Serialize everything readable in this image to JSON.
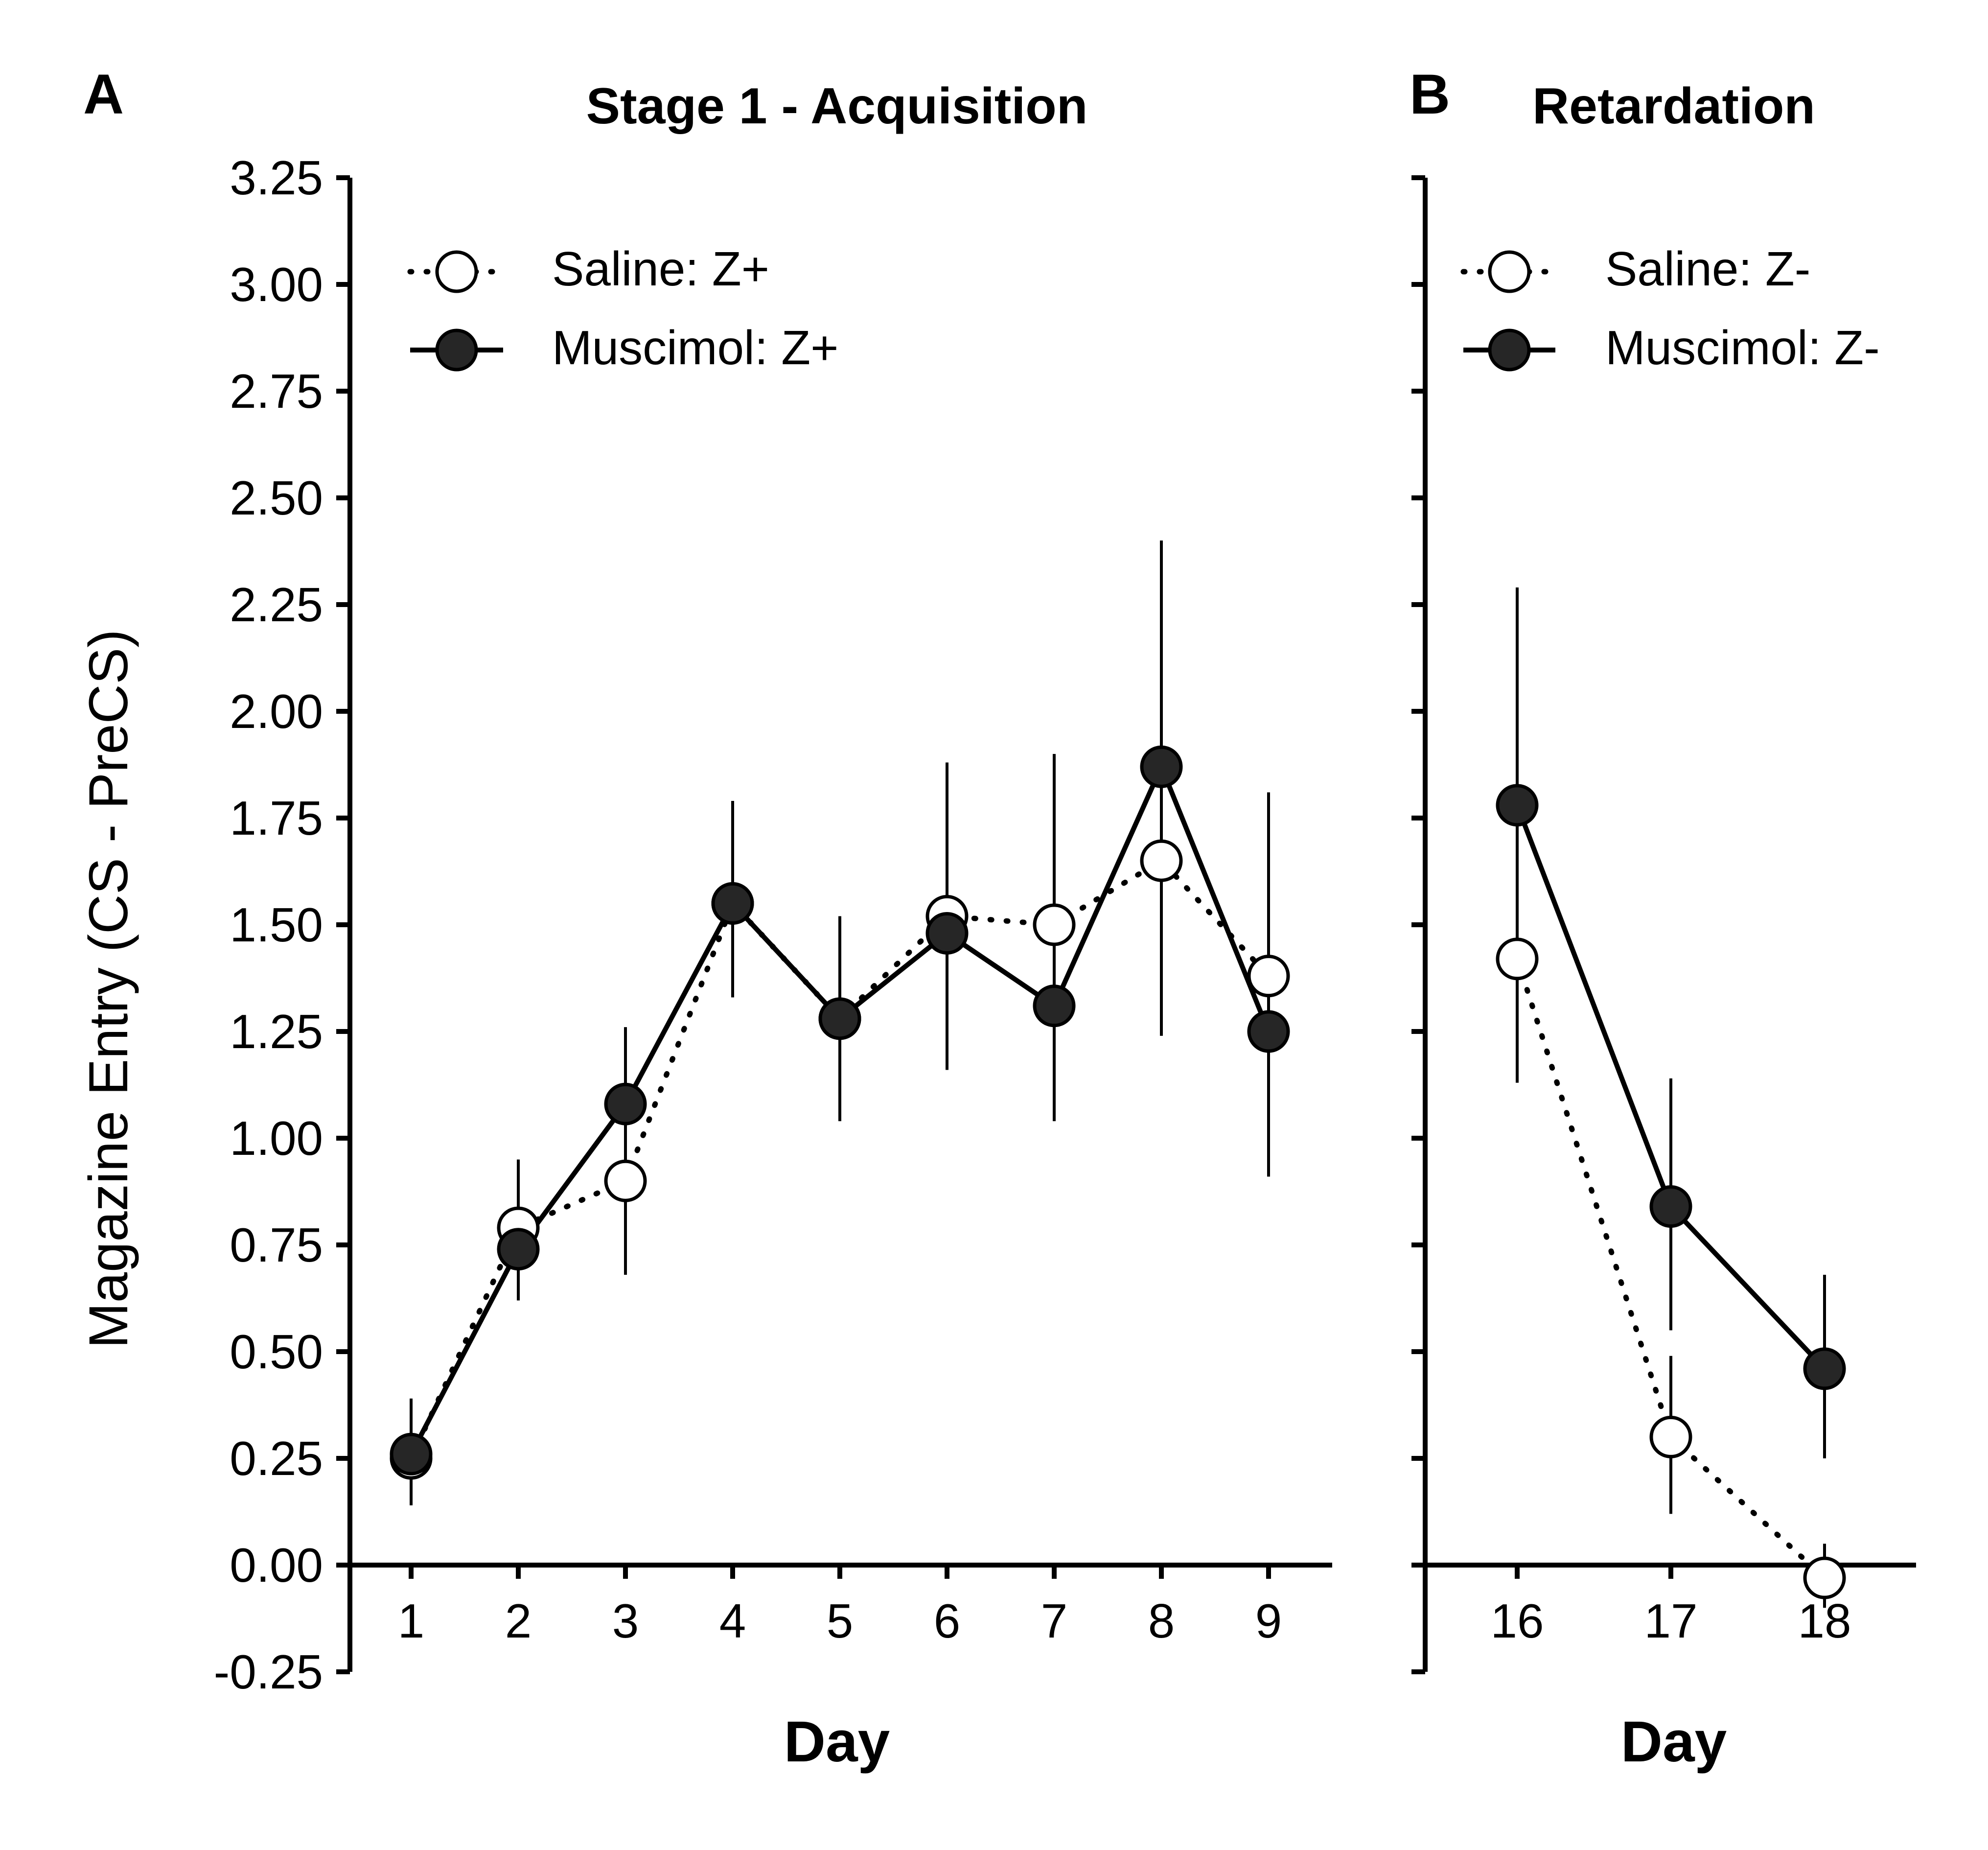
{
  "colors": {
    "axis": "#000000",
    "filled_marker": "#262626",
    "open_marker": "#ffffff",
    "background": "#ffffff"
  },
  "y_axis": {
    "label": "Magazine Entry (CS - PreCS)",
    "ylim": [
      -0.25,
      3.25
    ],
    "ticks": [
      "-0.25",
      "0.00",
      "0.25",
      "0.50",
      "0.75",
      "1.00",
      "1.25",
      "1.50",
      "1.75",
      "2.00",
      "2.25",
      "2.50",
      "2.75",
      "3.00",
      "3.25"
    ]
  },
  "chart_data": [
    {
      "type": "line",
      "panel": "A",
      "title": "Stage 1 - Acquisition",
      "xlabel": "Day",
      "ylabel": "Magazine Entry (CS - PreCS)",
      "x": [
        1,
        2,
        3,
        4,
        5,
        6,
        7,
        8,
        9
      ],
      "xlim": [
        0.4,
        9.6
      ],
      "ylim": [
        -0.25,
        3.25
      ],
      "grid": false,
      "legend_position": "top-left",
      "series": [
        {
          "name": "Saline: Z+",
          "line": "dotted",
          "marker": "open-circle",
          "values": [
            0.25,
            0.79,
            0.9,
            1.55,
            1.28,
            1.52,
            1.5,
            1.65,
            1.38
          ],
          "error_low": [
            0.14,
            0.62,
            0.68,
            1.33,
            1.04,
            1.16,
            1.04,
            1.24,
            0.91
          ],
          "error_high": [
            0.39,
            0.95,
            1.26,
            1.79,
            1.52,
            1.88,
            1.9,
            2.4,
            1.81
          ]
        },
        {
          "name": "Muscimol: Z+",
          "line": "solid",
          "marker": "filled-circle",
          "values": [
            0.26,
            0.74,
            1.08,
            1.55,
            1.28,
            1.48,
            1.31,
            1.87,
            1.25
          ],
          "error_low": [
            0.14,
            0.62,
            0.68,
            1.33,
            1.04,
            1.16,
            1.04,
            1.24,
            0.91
          ],
          "error_high": [
            0.39,
            0.95,
            1.26,
            1.79,
            1.52,
            1.88,
            1.9,
            2.4,
            1.81
          ]
        }
      ]
    },
    {
      "type": "line",
      "panel": "B",
      "title": "Retardation",
      "xlabel": "Day",
      "ylabel": "",
      "x": [
        16,
        17,
        18
      ],
      "xlim": [
        15.4,
        18.6
      ],
      "ylim": [
        -0.25,
        3.25
      ],
      "grid": false,
      "legend_position": "top-left",
      "series": [
        {
          "name": "Saline: Z-",
          "line": "dotted",
          "marker": "open-circle",
          "values": [
            1.42,
            0.3,
            -0.03
          ],
          "error_low": [
            1.13,
            0.12,
            -0.1
          ],
          "error_high": [
            2.29,
            0.49,
            0.05
          ]
        },
        {
          "name": "Muscimol: Z-",
          "line": "solid",
          "marker": "filled-circle",
          "values": [
            1.78,
            0.84,
            0.46
          ],
          "error_low": [
            1.13,
            0.55,
            0.25
          ],
          "error_high": [
            2.29,
            1.14,
            0.68
          ]
        }
      ]
    }
  ]
}
